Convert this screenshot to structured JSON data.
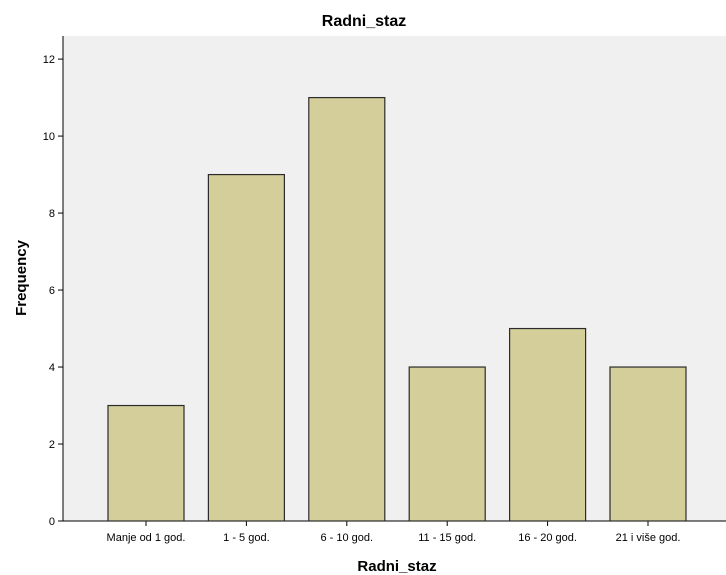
{
  "chart_data": {
    "type": "bar",
    "title": "Radni_staz",
    "xlabel": "Radni_staz",
    "ylabel": "Frequency",
    "categories": [
      "Manje od 1 god.",
      "1 - 5 god.",
      "6 - 10 god.",
      "11 - 15 god.",
      "16 - 20 god.",
      "21 i više god."
    ],
    "values": [
      3,
      9,
      11,
      4,
      5,
      4
    ],
    "ylim": [
      0,
      12.6
    ],
    "yticks": [
      0,
      2,
      4,
      6,
      8,
      10,
      12
    ],
    "grid": false,
    "legend": "none",
    "colors": {
      "bar_fill": "#d4cf9a",
      "bar_stroke": "#2b2b2b",
      "plot_background": "#f0f0f0",
      "axis": "#000000"
    }
  }
}
